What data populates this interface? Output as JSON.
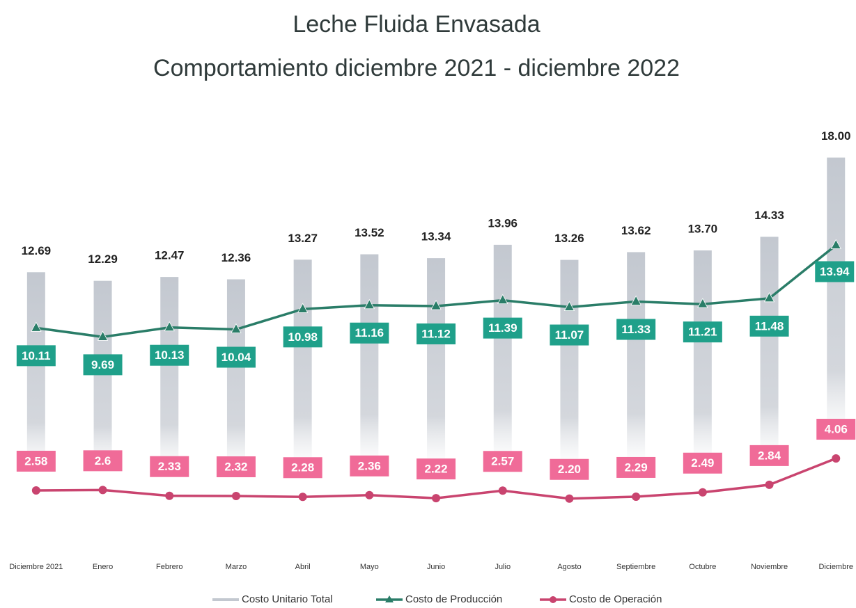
{
  "chart_data": {
    "type": "bar-line",
    "title": "Leche Fluida Envasada",
    "subtitle": "Comportamiento diciembre 2021 - diciembre 2022",
    "categories": [
      "Diciembre 2021",
      "Enero",
      "Febrero",
      "Marzo",
      "Abril",
      "Mayo",
      "Junio",
      "Julio",
      "Agosto",
      "Septiembre",
      "Octubre",
      "Noviembre",
      "Diciembre"
    ],
    "ylim": [
      0,
      19.5
    ],
    "series": [
      {
        "name": "Costo Unitario Total",
        "type": "bar",
        "color": "#c3c8d0",
        "values": [
          12.69,
          12.29,
          12.47,
          12.36,
          13.27,
          13.52,
          13.34,
          13.96,
          13.26,
          13.62,
          13.7,
          14.33,
          18.0
        ],
        "value_labels": [
          "12.69",
          "12.29",
          "12.47",
          "12.36",
          "13.27",
          "13.52",
          "13.34",
          "13.96",
          "13.26",
          "13.62",
          "13.70",
          "14.33",
          "18.00"
        ]
      },
      {
        "name": "Costo de Producción",
        "type": "line",
        "color": "#2a7d68",
        "label_color": "#1fa08a",
        "marker": "triangle",
        "values": [
          10.11,
          9.69,
          10.13,
          10.04,
          10.98,
          11.16,
          11.12,
          11.39,
          11.07,
          11.33,
          11.21,
          11.48,
          13.94
        ],
        "value_labels": [
          "10.11",
          "9.69",
          "10.13",
          "10.04",
          "10.98",
          "11.16",
          "11.12",
          "11.39",
          "11.07",
          "11.33",
          "11.21",
          "11.48",
          "13.94"
        ]
      },
      {
        "name": "Costo de Operación",
        "type": "line",
        "color": "#c9446f",
        "label_color": "#f06b98",
        "marker": "circle",
        "values": [
          2.58,
          2.6,
          2.33,
          2.32,
          2.28,
          2.36,
          2.22,
          2.57,
          2.2,
          2.29,
          2.49,
          2.84,
          4.06
        ],
        "value_labels": [
          "2.58",
          "2.6",
          "2.33",
          "2.32",
          "2.28",
          "2.36",
          "2.22",
          "2.57",
          "2.20",
          "2.29",
          "2.49",
          "2.84",
          "4.06"
        ]
      }
    ]
  }
}
